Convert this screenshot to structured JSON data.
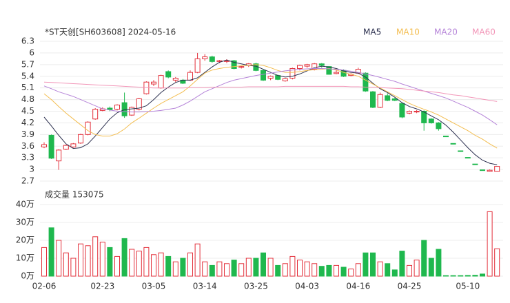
{
  "chart_data": {
    "type": "candlestick",
    "title": "*ST天创[SH603608] 2024-05-16",
    "categories": [
      "02-06",
      null,
      null,
      null,
      null,
      null,
      null,
      null,
      "02-23",
      null,
      null,
      null,
      null,
      null,
      null,
      "03-05",
      null,
      null,
      null,
      null,
      null,
      null,
      "03-14",
      null,
      null,
      null,
      null,
      null,
      null,
      "03-25",
      null,
      null,
      null,
      null,
      null,
      null,
      "04-03",
      null,
      null,
      null,
      null,
      null,
      null,
      "04-16",
      null,
      null,
      null,
      null,
      null,
      null,
      "04-25",
      null,
      null,
      null,
      null,
      null,
      null,
      null,
      "05-10",
      null,
      null,
      null,
      null
    ],
    "open": [
      3.58,
      3.88,
      3.22,
      3.52,
      3.58,
      3.68,
      3.9,
      4.3,
      4.52,
      4.58,
      4.55,
      4.72,
      4.4,
      4.55,
      4.95,
      5.2,
      5.1,
      5.52,
      5.3,
      5.3,
      5.3,
      5.5,
      5.85,
      5.9,
      5.78,
      5.78,
      5.8,
      5.63,
      5.68,
      5.72,
      5.55,
      5.35,
      5.42,
      5.28,
      5.35,
      5.6,
      5.66,
      5.58,
      5.72,
      5.65,
      5.47,
      5.55,
      5.42,
      5.48,
      5.48,
      5.0,
      4.6,
      4.9,
      4.82,
      4.7,
      4.45,
      4.48,
      4.5,
      4.3,
      4.2,
      3.86,
      3.67,
      3.48,
      3.31,
      3.14,
      2.99,
      2.95,
      2.95
    ],
    "high": [
      3.7,
      3.9,
      3.52,
      3.64,
      3.68,
      3.92,
      4.24,
      4.58,
      4.6,
      4.62,
      4.68,
      4.98,
      4.62,
      4.84,
      5.27,
      5.3,
      5.44,
      5.55,
      5.38,
      5.33,
      5.55,
      6.0,
      5.97,
      5.93,
      5.82,
      5.84,
      5.82,
      5.68,
      5.74,
      5.75,
      5.58,
      5.42,
      5.44,
      5.36,
      5.62,
      5.7,
      5.72,
      5.74,
      5.74,
      5.66,
      5.58,
      5.58,
      5.48,
      5.62,
      5.5,
      5.02,
      4.98,
      4.96,
      4.84,
      4.72,
      4.52,
      4.53,
      4.52,
      4.32,
      4.22,
      3.86,
      3.67,
      3.48,
      3.31,
      3.14,
      2.99,
      3.0,
      3.09
    ],
    "low": [
      3.55,
      3.27,
      2.99,
      3.5,
      3.56,
      3.66,
      3.88,
      4.28,
      4.5,
      4.5,
      4.52,
      4.33,
      4.38,
      4.52,
      4.93,
      5.15,
      5.08,
      5.35,
      5.25,
      5.2,
      5.28,
      5.48,
      5.8,
      5.75,
      5.74,
      5.74,
      5.58,
      5.6,
      5.64,
      5.53,
      5.28,
      5.3,
      5.3,
      5.26,
      5.32,
      5.55,
      5.62,
      5.55,
      5.62,
      5.44,
      5.45,
      5.38,
      5.4,
      5.46,
      5.0,
      4.58,
      4.58,
      4.76,
      4.76,
      4.32,
      4.42,
      4.45,
      4.0,
      4.18,
      4.0,
      3.85,
      3.66,
      3.47,
      3.3,
      3.13,
      2.98,
      2.94,
      2.94
    ],
    "close": [
      3.64,
      3.29,
      3.5,
      3.62,
      3.66,
      3.9,
      4.22,
      4.55,
      4.56,
      4.54,
      4.66,
      4.38,
      4.6,
      4.82,
      5.25,
      5.25,
      5.42,
      5.38,
      5.35,
      5.22,
      5.5,
      5.85,
      5.9,
      5.78,
      5.8,
      5.8,
      5.6,
      5.65,
      5.72,
      5.55,
      5.3,
      5.4,
      5.32,
      5.34,
      5.6,
      5.68,
      5.7,
      5.72,
      5.68,
      5.45,
      5.5,
      5.4,
      5.45,
      5.58,
      5.02,
      4.6,
      4.93,
      4.78,
      4.78,
      4.35,
      4.5,
      4.5,
      4.2,
      4.2,
      4.05,
      3.85,
      3.66,
      3.47,
      3.3,
      3.13,
      2.98,
      2.98,
      3.08
    ],
    "up_color": "#e3303b",
    "down_color": "#1fb84e",
    "ylim": [
      2.7,
      6.3
    ],
    "yticks": [
      2.7,
      3,
      3.3,
      3.6,
      3.9,
      4.2,
      4.5,
      4.8,
      5.1,
      5.4,
      5.7,
      6,
      6.3
    ],
    "grid": true,
    "series": [
      {
        "name": "MA5",
        "color": "#2b2f4e",
        "values": [
          4.35,
          4.12,
          3.88,
          3.66,
          3.54,
          3.56,
          3.66,
          3.86,
          4.08,
          4.3,
          4.46,
          4.54,
          4.56,
          4.58,
          4.64,
          4.8,
          4.98,
          5.12,
          5.24,
          5.3,
          5.3,
          5.36,
          5.5,
          5.64,
          5.76,
          5.82,
          5.76,
          5.72,
          5.68,
          5.66,
          5.58,
          5.5,
          5.42,
          5.38,
          5.4,
          5.46,
          5.54,
          5.62,
          5.66,
          5.64,
          5.6,
          5.54,
          5.5,
          5.48,
          5.38,
          5.22,
          5.08,
          4.98,
          4.86,
          4.72,
          4.62,
          4.56,
          4.48,
          4.38,
          4.28,
          4.14,
          3.96,
          3.76,
          3.56,
          3.38,
          3.24,
          3.16,
          3.12
        ]
      },
      {
        "name": "MA10",
        "color": "#f3bd4f",
        "values": [
          4.95,
          4.8,
          4.62,
          4.45,
          4.3,
          4.15,
          4.0,
          3.9,
          3.86,
          3.86,
          3.92,
          4.04,
          4.2,
          4.32,
          4.45,
          4.58,
          4.7,
          4.8,
          4.9,
          5.0,
          5.15,
          5.32,
          5.48,
          5.56,
          5.6,
          5.63,
          5.65,
          5.67,
          5.68,
          5.7,
          5.68,
          5.62,
          5.55,
          5.5,
          5.5,
          5.52,
          5.55,
          5.57,
          5.58,
          5.6,
          5.56,
          5.5,
          5.45,
          5.4,
          5.3,
          5.2,
          5.1,
          5.0,
          4.9,
          4.8,
          4.7,
          4.62,
          4.55,
          4.48,
          4.4,
          4.3,
          4.2,
          4.1,
          4.0,
          3.88,
          3.78,
          3.66,
          3.55
        ]
      },
      {
        "name": "MA20",
        "color": "#b583d8",
        "values": [
          5.15,
          5.08,
          5.0,
          4.94,
          4.88,
          4.8,
          4.72,
          4.64,
          4.56,
          4.53,
          4.5,
          4.49,
          4.48,
          4.48,
          4.49,
          4.5,
          4.52,
          4.55,
          4.58,
          4.66,
          4.76,
          4.88,
          5.0,
          5.08,
          5.16,
          5.24,
          5.3,
          5.34,
          5.38,
          5.42,
          5.45,
          5.48,
          5.51,
          5.54,
          5.56,
          5.58,
          5.59,
          5.6,
          5.6,
          5.59,
          5.58,
          5.56,
          5.53,
          5.5,
          5.46,
          5.42,
          5.37,
          5.32,
          5.27,
          5.2,
          5.14,
          5.08,
          5.02,
          4.96,
          4.9,
          4.84,
          4.76,
          4.68,
          4.6,
          4.5,
          4.4,
          4.28,
          4.15
        ]
      },
      {
        "name": "MA60",
        "color": "#f296b8",
        "values": [
          5.25,
          5.24,
          5.23,
          5.22,
          5.21,
          5.2,
          5.19,
          5.18,
          5.17,
          5.16,
          5.15,
          5.14,
          5.13,
          5.12,
          5.11,
          5.1,
          5.1,
          5.1,
          5.1,
          5.1,
          5.11,
          5.11,
          5.11,
          5.12,
          5.12,
          5.12,
          5.12,
          5.12,
          5.13,
          5.13,
          5.13,
          5.13,
          5.13,
          5.14,
          5.14,
          5.14,
          5.14,
          5.14,
          5.14,
          5.14,
          5.14,
          5.14,
          5.13,
          5.13,
          5.12,
          5.12,
          5.11,
          5.1,
          5.09,
          5.08,
          5.06,
          5.04,
          5.02,
          5.0,
          4.98,
          4.95,
          4.92,
          4.9,
          4.87,
          4.84,
          4.81,
          4.78,
          4.75
        ]
      }
    ],
    "volume_label": "成交量 153075",
    "volume": {
      "values": [
        16,
        27,
        20,
        13,
        10,
        18,
        17,
        22,
        19,
        16,
        11,
        21,
        15,
        14,
        16,
        12,
        13,
        11,
        8,
        10,
        13,
        18,
        8,
        6,
        8,
        7,
        9,
        7,
        10,
        10,
        13,
        10,
        6,
        7,
        11,
        9,
        8,
        7,
        5.5,
        6,
        6,
        5,
        4,
        7,
        13,
        13,
        8,
        7,
        3.5,
        14,
        6,
        9,
        20,
        10,
        15,
        0.3,
        0.3,
        0.3,
        0.4,
        0.5,
        1.2,
        36,
        15.3075
      ],
      "ylim": [
        0,
        40
      ],
      "yticks": [
        {
          "value": 0,
          "label": "0万"
        },
        {
          "value": 10,
          "label": "10万"
        },
        {
          "value": 20,
          "label": "20万"
        },
        {
          "value": 30,
          "label": "30万"
        },
        {
          "value": 40,
          "label": "40万"
        }
      ]
    }
  }
}
